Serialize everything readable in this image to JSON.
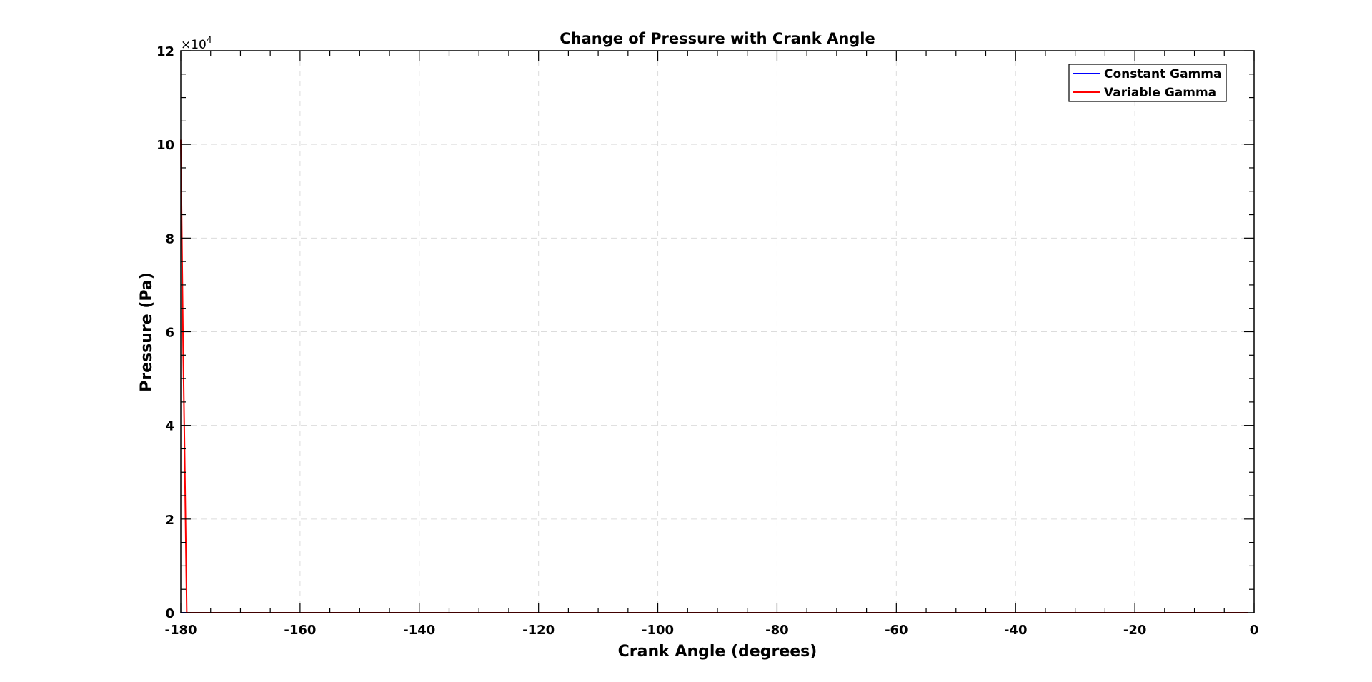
{
  "chart_data": {
    "type": "line",
    "title": "Change of Pressure with Crank Angle",
    "xlabel": "Crank Angle (degrees)",
    "ylabel": "Pressure (Pa)",
    "xlim": [
      -180,
      0
    ],
    "ylim": [
      0,
      120000
    ],
    "y_exponent_label": "×10",
    "y_exponent_power": "4",
    "xticks": [
      -180,
      -160,
      -140,
      -120,
      -100,
      -80,
      -60,
      -40,
      -20,
      0
    ],
    "xtick_labels": [
      "-180",
      "-160",
      "-140",
      "-120",
      "-100",
      "-80",
      "-60",
      "-40",
      "-20",
      "0"
    ],
    "yticks": [
      0,
      20000,
      40000,
      60000,
      80000,
      100000,
      120000
    ],
    "ytick_labels": [
      "0",
      "2",
      "4",
      "6",
      "8",
      "10",
      "12"
    ],
    "grid": true,
    "legend_position": "top-right",
    "series": [
      {
        "name": "Constant Gamma",
        "color": "#0000ff",
        "x": [
          -180,
          -150,
          -120,
          -90,
          -60,
          -30,
          -1
        ],
        "y": [
          0,
          0,
          0,
          0,
          0,
          0,
          0
        ]
      },
      {
        "name": "Variable Gamma",
        "color": "#ff0000",
        "x": [
          -180,
          -179.8,
          -179.6,
          -179.4,
          -179.2,
          -179,
          -1
        ],
        "y": [
          101000,
          78000,
          56000,
          38000,
          19000,
          0,
          0
        ]
      }
    ]
  }
}
